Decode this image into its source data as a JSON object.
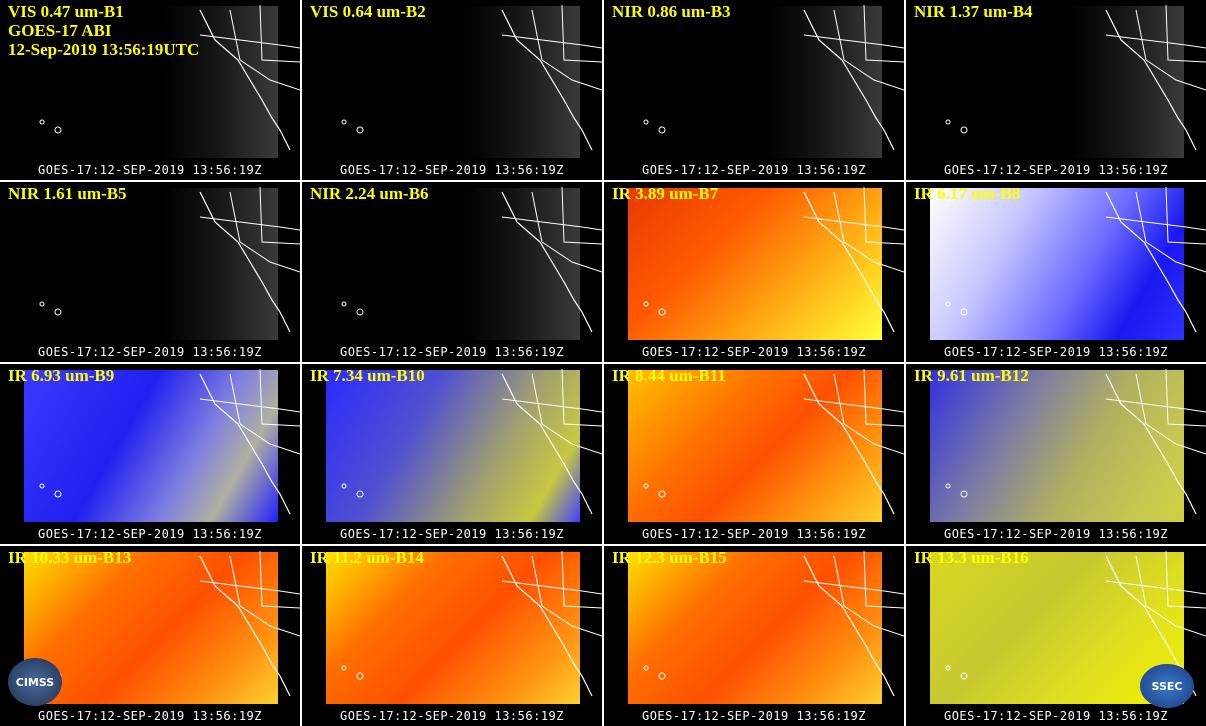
{
  "header": {
    "lines": [
      "GOES-17 ABI",
      "12-Sep-2019 13:56:19UTC"
    ]
  },
  "panels": [
    {
      "label": "VIS 0.47 um-B1",
      "footer": "GOES-17:12-SEP-2019 13:56:19Z"
    },
    {
      "label": "VIS 0.64 um-B2",
      "footer": "GOES-17:12-SEP-2019 13:56:19Z"
    },
    {
      "label": "NIR 0.86 um-B3",
      "footer": "GOES-17:12-SEP-2019 13:56:19Z"
    },
    {
      "label": "NIR 1.37 um-B4",
      "footer": "GOES-17:12-SEP-2019 13:56:19Z"
    },
    {
      "label": "NIR 1.61 um-B5",
      "footer": "GOES-17:12-SEP-2019 13:56:19Z"
    },
    {
      "label": "NIR 2.24 um-B6",
      "footer": "GOES-17:12-SEP-2019 13:56:19Z"
    },
    {
      "label": "IR 3.89 um-B7",
      "footer": "GOES-17:12-SEP-2019 13:56:19Z"
    },
    {
      "label": "IR 6.17 um-B8",
      "footer": "GOES-17:12-SEP-2019 13:56:19Z"
    },
    {
      "label": "IR 6.93 um-B9",
      "footer": "GOES-17:12-SEP-2019 13:56:19Z"
    },
    {
      "label": "IR 7.34 um-B10",
      "footer": "GOES-17:12-SEP-2019 13:56:19Z"
    },
    {
      "label": "IR 8.44 um-B11",
      "footer": "GOES-17:12-SEP-2019 13:56:19Z"
    },
    {
      "label": "IR 9.61 um-B12",
      "footer": "GOES-17:12-SEP-2019 13:56:19Z"
    },
    {
      "label": "IR 10.33 um-B13",
      "footer": "GOES-17:12-SEP-2019 13:56:19Z"
    },
    {
      "label": "IR 11.2 um-B14",
      "footer": "GOES-17:12-SEP-2019 13:56:19Z"
    },
    {
      "label": "IR 12.3 um-B15",
      "footer": "GOES-17:12-SEP-2019 13:56:19Z"
    },
    {
      "label": "IR 13.3 um-B16",
      "footer": "GOES-17:12-SEP-2019 13:56:19Z"
    }
  ],
  "logos": [
    "CIMSS",
    "SSEC"
  ]
}
